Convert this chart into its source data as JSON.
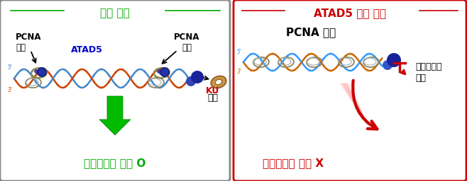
{
  "fig_width": 6.58,
  "fig_height": 2.56,
  "dpi": 100,
  "bg_color": "#ffffff",
  "left_panel": {
    "title": "정상 세포",
    "title_color": "#00aa00",
    "border_color": "#888888",
    "pcna_left_label": "PCNA\n분리",
    "atad5_label": "ATAD5",
    "atad5_color": "#0000cc",
    "pcna_right_label": "PCNA\n분리",
    "ku_label": "KU",
    "ku_sub_label": "제거",
    "ku_color": "#cc0000",
    "bottom_label": "상동재조합 복구 O",
    "bottom_color": "#00aa00",
    "arrow_color": "#00aa00"
  },
  "right_panel": {
    "title": "ATAD5 결필 세포",
    "title_color": "#cc0000",
    "border_color": "#cc0000",
    "pcna_accum_label": "PCNA 축적",
    "block_label": "단거리절제\n방해",
    "bottom_label": "상동재조합 복구 X",
    "bottom_color": "#cc0000",
    "arrow_color": "#cc0000"
  }
}
